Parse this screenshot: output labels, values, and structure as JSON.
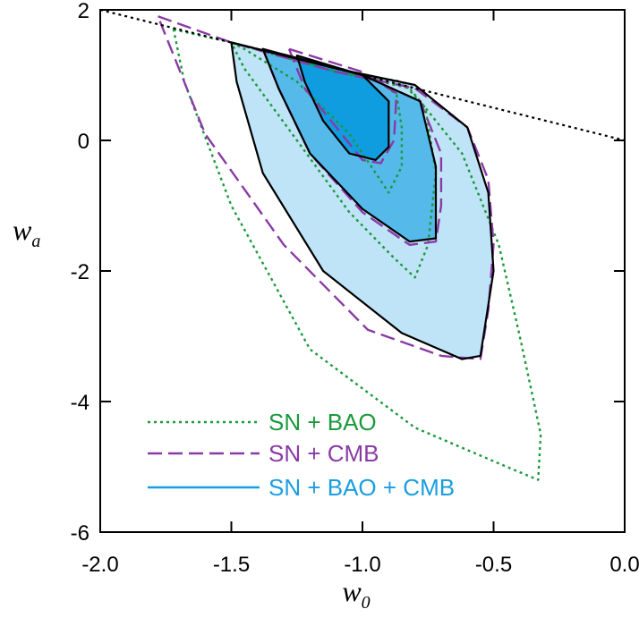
{
  "chart_data": {
    "type": "contour",
    "xlabel": "w",
    "xlabel_sub": "0",
    "ylabel": "w",
    "ylabel_sub": "a",
    "xlim": [
      -2.0,
      0.0
    ],
    "ylim": [
      -6,
      2
    ],
    "xticks": [
      -2.0,
      -1.5,
      -1.0,
      -0.5,
      0.0
    ],
    "xtick_labels": [
      "-2.0",
      "-1.5",
      "-1.0",
      "-0.5",
      "0.0"
    ],
    "yticks": [
      -6,
      -4,
      -2,
      0,
      2
    ],
    "ytick_labels": [
      "-6",
      "-4",
      "-2",
      "0",
      "2"
    ],
    "grid": false,
    "legend_position": "lower-left",
    "boundary_line": {
      "style": "dotted",
      "color": "#000000",
      "points": [
        [
          -2.0,
          2.0
        ],
        [
          0.0,
          0.0
        ]
      ]
    },
    "series": [
      {
        "name": "SN + BAO",
        "style": "dotted",
        "color": "#1a9a3c",
        "contours": [
          [
            [
              -1.5,
              1.5
            ],
            [
              -1.35,
              1.35
            ],
            [
              -1.1,
              1.05
            ],
            [
              -0.95,
              0.95
            ],
            [
              -0.87,
              0.7
            ],
            [
              -0.85,
              0.2
            ],
            [
              -0.85,
              -0.4
            ],
            [
              -0.9,
              -0.8
            ],
            [
              -0.95,
              -0.5
            ],
            [
              -1.05,
              0.1
            ],
            [
              -1.25,
              0.9
            ],
            [
              -1.45,
              1.4
            ],
            [
              -1.5,
              1.5
            ]
          ],
          [
            [
              -1.5,
              1.5
            ],
            [
              -1.3,
              1.3
            ],
            [
              -1.0,
              1.0
            ],
            [
              -0.85,
              0.9
            ],
            [
              -0.76,
              0.5
            ],
            [
              -0.72,
              -0.5
            ],
            [
              -0.75,
              -1.6
            ],
            [
              -0.8,
              -2.1
            ],
            [
              -0.88,
              -1.8
            ],
            [
              -1.05,
              -1.1
            ],
            [
              -1.25,
              0.0
            ],
            [
              -1.45,
              1.1
            ],
            [
              -1.5,
              1.5
            ]
          ],
          [
            [
              -1.72,
              1.7
            ],
            [
              -1.5,
              1.5
            ],
            [
              -1.1,
              1.05
            ],
            [
              -0.82,
              0.8
            ],
            [
              -0.62,
              -0.2
            ],
            [
              -0.48,
              -1.6
            ],
            [
              -0.4,
              -3.0
            ],
            [
              -0.32,
              -4.5
            ],
            [
              -0.33,
              -5.2
            ],
            [
              -0.45,
              -5.0
            ],
            [
              -0.8,
              -4.4
            ],
            [
              -1.2,
              -3.2
            ],
            [
              -1.5,
              -1.0
            ],
            [
              -1.68,
              0.9
            ],
            [
              -1.72,
              1.7
            ]
          ]
        ]
      },
      {
        "name": "SN + CMB",
        "style": "dashed",
        "color": "#8a3aa6",
        "contours": [
          [
            [
              -1.28,
              1.4
            ],
            [
              -1.0,
              1.05
            ],
            [
              -0.87,
              0.72
            ],
            [
              -0.88,
              0.0
            ],
            [
              -0.93,
              -0.35
            ],
            [
              -1.0,
              -0.3
            ],
            [
              -1.1,
              0.2
            ],
            [
              -1.22,
              0.8
            ],
            [
              -1.28,
              1.4
            ]
          ],
          [
            [
              -1.38,
              1.4
            ],
            [
              -1.0,
              1.0
            ],
            [
              -0.78,
              0.6
            ],
            [
              -0.7,
              -0.2
            ],
            [
              -0.7,
              -1.0
            ],
            [
              -0.72,
              -1.55
            ],
            [
              -0.82,
              -1.6
            ],
            [
              -1.0,
              -1.1
            ],
            [
              -1.2,
              -0.2
            ],
            [
              -1.32,
              0.8
            ],
            [
              -1.38,
              1.4
            ]
          ],
          [
            [
              -1.78,
              1.9
            ],
            [
              -1.5,
              1.5
            ],
            [
              -1.1,
              1.05
            ],
            [
              -0.8,
              0.8
            ],
            [
              -0.6,
              0.2
            ],
            [
              -0.52,
              -0.6
            ],
            [
              -0.5,
              -1.6
            ],
            [
              -0.52,
              -2.6
            ],
            [
              -0.55,
              -3.35
            ],
            [
              -0.7,
              -3.3
            ],
            [
              -0.98,
              -2.9
            ],
            [
              -1.3,
              -1.6
            ],
            [
              -1.6,
              0.1
            ],
            [
              -1.78,
              1.9
            ]
          ]
        ]
      },
      {
        "name": "SN + BAO + CMB",
        "style": "solid",
        "color": "#1a9ee0",
        "fill_colors": [
          "#bfe3f7",
          "#55b9ea",
          "#0f9de0"
        ],
        "contours": [
          [
            [
              -1.5,
              1.5
            ],
            [
              -1.1,
              1.1
            ],
            [
              -0.8,
              0.85
            ],
            [
              -0.6,
              0.2
            ],
            [
              -0.52,
              -0.8
            ],
            [
              -0.5,
              -2.0
            ],
            [
              -0.55,
              -3.3
            ],
            [
              -0.62,
              -3.35
            ],
            [
              -0.85,
              -2.95
            ],
            [
              -1.15,
              -2.0
            ],
            [
              -1.38,
              -0.5
            ],
            [
              -1.48,
              0.9
            ],
            [
              -1.5,
              1.5
            ]
          ],
          [
            [
              -1.38,
              1.4
            ],
            [
              -1.0,
              1.0
            ],
            [
              -0.78,
              0.6
            ],
            [
              -0.72,
              -0.4
            ],
            [
              -0.72,
              -1.5
            ],
            [
              -0.82,
              -1.55
            ],
            [
              -1.0,
              -1.05
            ],
            [
              -1.2,
              -0.2
            ],
            [
              -1.32,
              0.8
            ],
            [
              -1.38,
              1.4
            ]
          ],
          [
            [
              -1.25,
              1.3
            ],
            [
              -1.0,
              1.0
            ],
            [
              -0.9,
              0.6
            ],
            [
              -0.9,
              -0.1
            ],
            [
              -0.95,
              -0.3
            ],
            [
              -1.05,
              -0.2
            ],
            [
              -1.15,
              0.3
            ],
            [
              -1.22,
              0.9
            ],
            [
              -1.25,
              1.3
            ]
          ]
        ]
      }
    ]
  }
}
